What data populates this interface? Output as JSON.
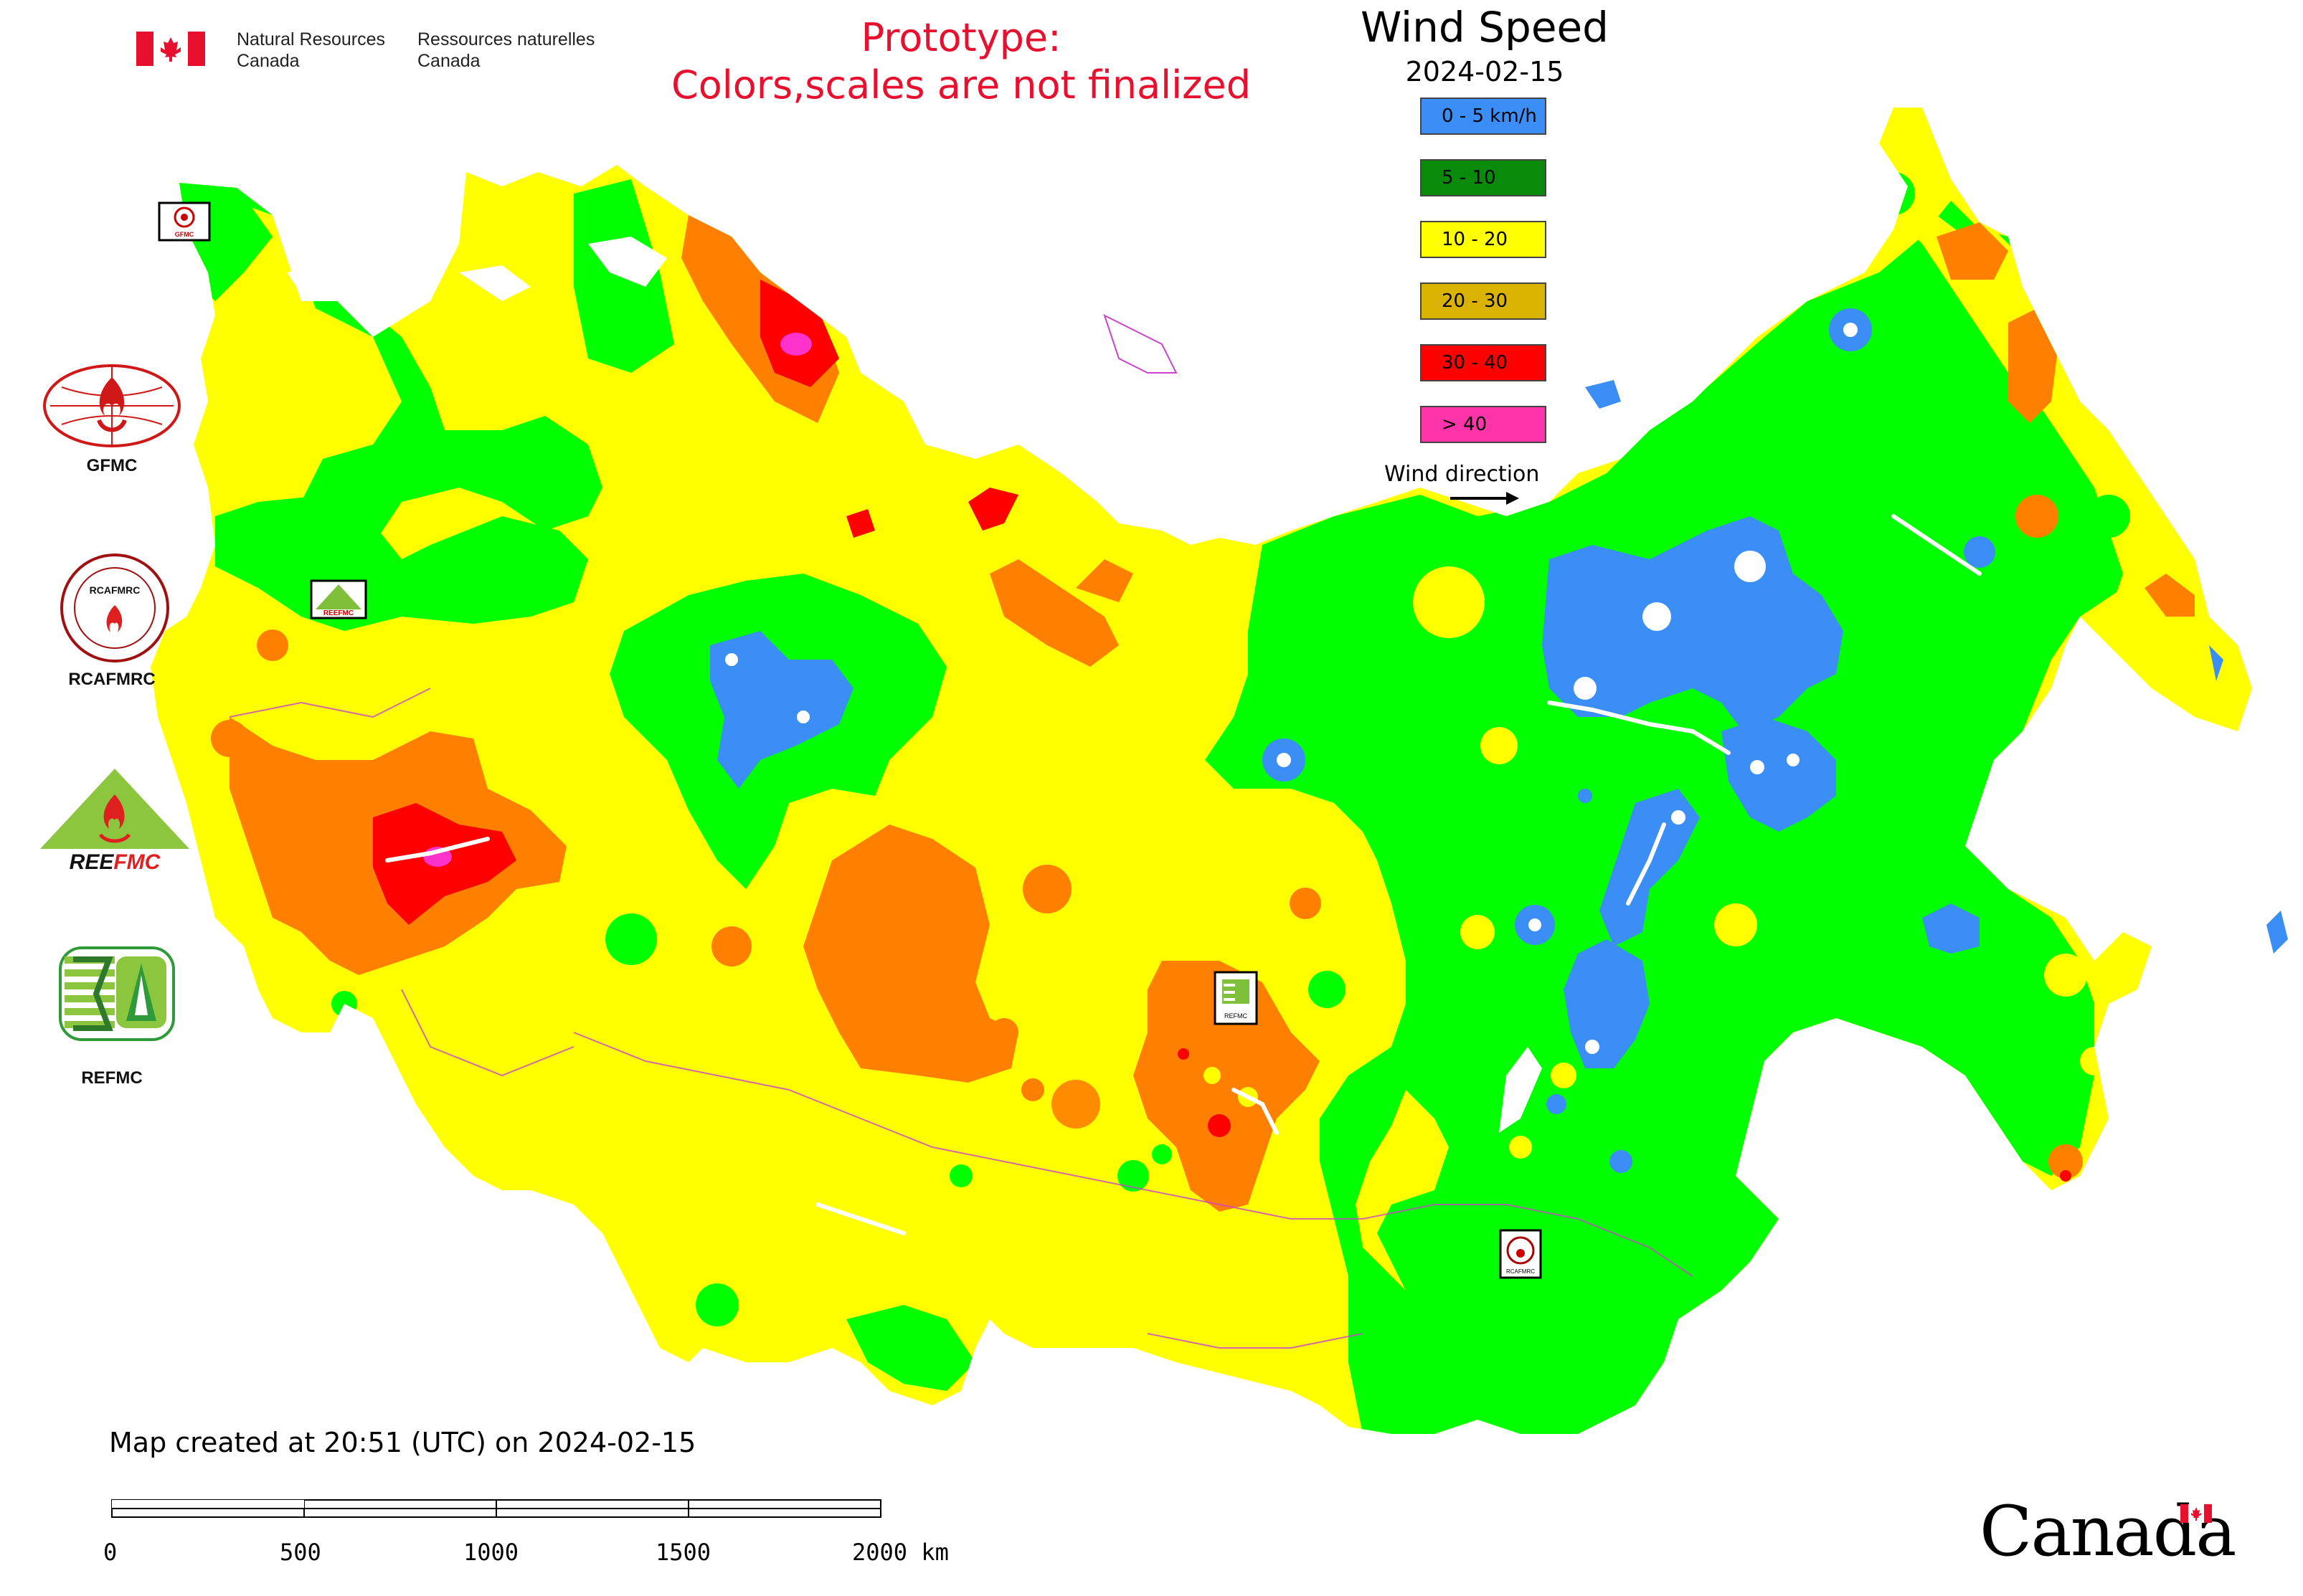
{
  "header": {
    "dept_en_line1": "Natural Resources",
    "dept_en_line2": "Canada",
    "dept_fr_line1": "Ressources naturelles",
    "dept_fr_line2": "Canada",
    "prototype_line1": "Prototype:",
    "prototype_line2": "Colors,scales are not finalized",
    "prototype_color": "#e8102e"
  },
  "legend": {
    "title": "Wind Speed",
    "date": "2024-02-15",
    "classes": [
      {
        "label": "0 - 5 km/h",
        "color": "#3a8ef6"
      },
      {
        "label": "5 - 10",
        "color": "#0a8a0a"
      },
      {
        "label": "10 - 20",
        "color": "#ffff00"
      },
      {
        "label": "20 - 30",
        "color": "#d9b300"
      },
      {
        "label": "30 - 40",
        "color": "#ff0000"
      },
      {
        "label": "> 40",
        "color": "#ff33aa"
      }
    ],
    "wind_direction_label": "Wind direction"
  },
  "map_colors": {
    "calm": "#3a8ef6",
    "light": "#00ff00",
    "moderate": "#ffff00",
    "fresh": "#ff8000",
    "strong": "#ff0000",
    "gale": "#ff33cc",
    "water": "#ffffff",
    "border": "#cc44cc"
  },
  "logos": [
    {
      "name": "GFMC",
      "label": "GFMC"
    },
    {
      "name": "RCAFMRC",
      "label": "RCAFMRC"
    },
    {
      "name": "REEFMC",
      "label": "REEFMC"
    },
    {
      "name": "REFMC",
      "label": "REFMC"
    }
  ],
  "map_markers": {
    "gfmc_small": "GFMC",
    "rcafmrc_small": "RCAFMRC",
    "refmc_small": "REFMC"
  },
  "footer": {
    "created": "Map created at 20:51 (UTC) on 2024-02-15",
    "scale_ticks": [
      "0",
      "500",
      "1000",
      "1500",
      "2000 km"
    ],
    "wordmark": "Canada"
  }
}
